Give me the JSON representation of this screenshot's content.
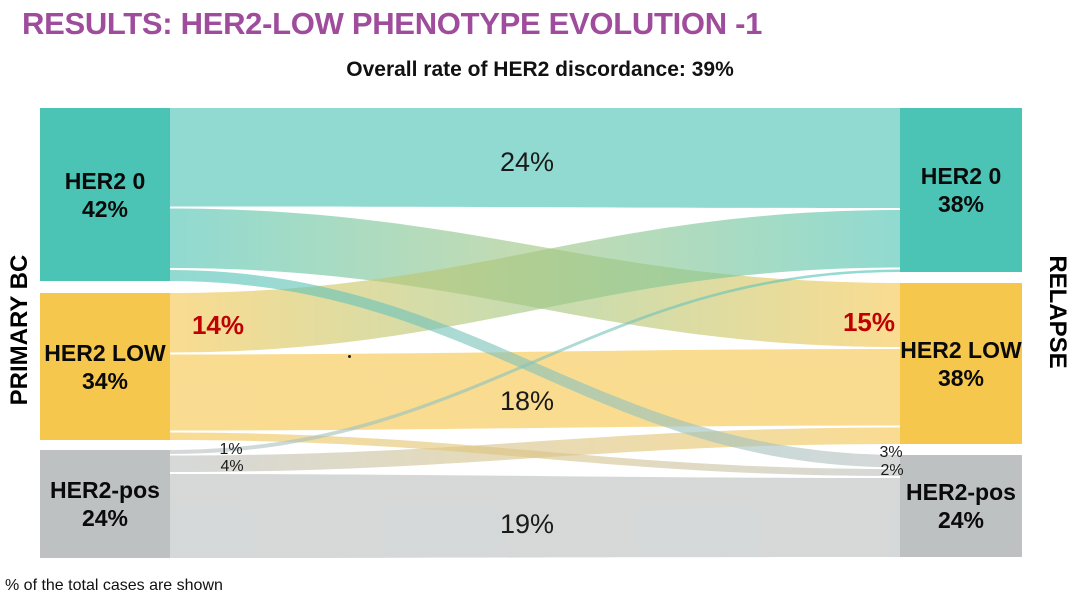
{
  "slide": {
    "title": "RESULTS: HER2-LOW PHENOTYPE EVOLUTION -1",
    "subtitle": "Overall rate of HER2 discordance: 39%",
    "footnote": "% of the total cases are shown",
    "title_color": "#9E4C9B"
  },
  "axes": {
    "left": "PRIMARY BC",
    "right": "RELAPSE"
  },
  "colors": {
    "teal": "#4CC4B5",
    "yellow": "#F6C74D",
    "gray": "#BDC1C1",
    "red_emphasis": "#C00000",
    "title_purple": "#9E4C9B"
  },
  "chart_data": {
    "type": "sankey",
    "title": "Overall rate of HER2 discordance: 39%",
    "discordance_rate_pct": 39,
    "left_axis_label": "PRIMARY BC",
    "right_axis_label": "RELAPSE",
    "nodes_left": [
      {
        "id": "her2_0",
        "label": "HER2 0",
        "pct": 42,
        "pct_label": "42%",
        "color": "#4CC4B5"
      },
      {
        "id": "her2_low",
        "label": "HER2 LOW",
        "pct": 34,
        "pct_label": "34%",
        "color": "#F6C74D"
      },
      {
        "id": "her2_pos",
        "label": "HER2-pos",
        "pct": 24,
        "pct_label": "24%",
        "color": "#BDC1C1"
      }
    ],
    "nodes_right": [
      {
        "id": "her2_0",
        "label": "HER2 0",
        "pct": 38,
        "pct_label": "38%",
        "color": "#4CC4B5"
      },
      {
        "id": "her2_low",
        "label": "HER2 LOW",
        "pct": 38,
        "pct_label": "38%",
        "color": "#F6C74D"
      },
      {
        "id": "her2_pos",
        "label": "HER2-pos",
        "pct": 24,
        "pct_label": "24%",
        "color": "#BDC1C1"
      }
    ],
    "links": [
      {
        "from": "her2_0",
        "to": "her2_0",
        "pct": 24,
        "label": "24%",
        "emphasis": false
      },
      {
        "from": "her2_0",
        "to": "her2_low",
        "pct": 15,
        "label": "15%",
        "emphasis": true
      },
      {
        "from": "her2_0",
        "to": "her2_pos",
        "pct": 3,
        "label": "3%",
        "emphasis": false
      },
      {
        "from": "her2_low",
        "to": "her2_0",
        "pct": 14,
        "label": "14%",
        "emphasis": true
      },
      {
        "from": "her2_low",
        "to": "her2_low",
        "pct": 18,
        "label": "18%",
        "emphasis": false
      },
      {
        "from": "her2_low",
        "to": "her2_pos",
        "pct": 2,
        "label": "2%",
        "emphasis": false
      },
      {
        "from": "her2_pos",
        "to": "her2_0",
        "pct": 1,
        "label": "1%",
        "emphasis": false
      },
      {
        "from": "her2_pos",
        "to": "her2_low",
        "pct": 4,
        "label": "4%",
        "emphasis": false
      },
      {
        "from": "her2_pos",
        "to": "her2_pos",
        "pct": 19,
        "label": "19%",
        "emphasis": false
      }
    ]
  }
}
